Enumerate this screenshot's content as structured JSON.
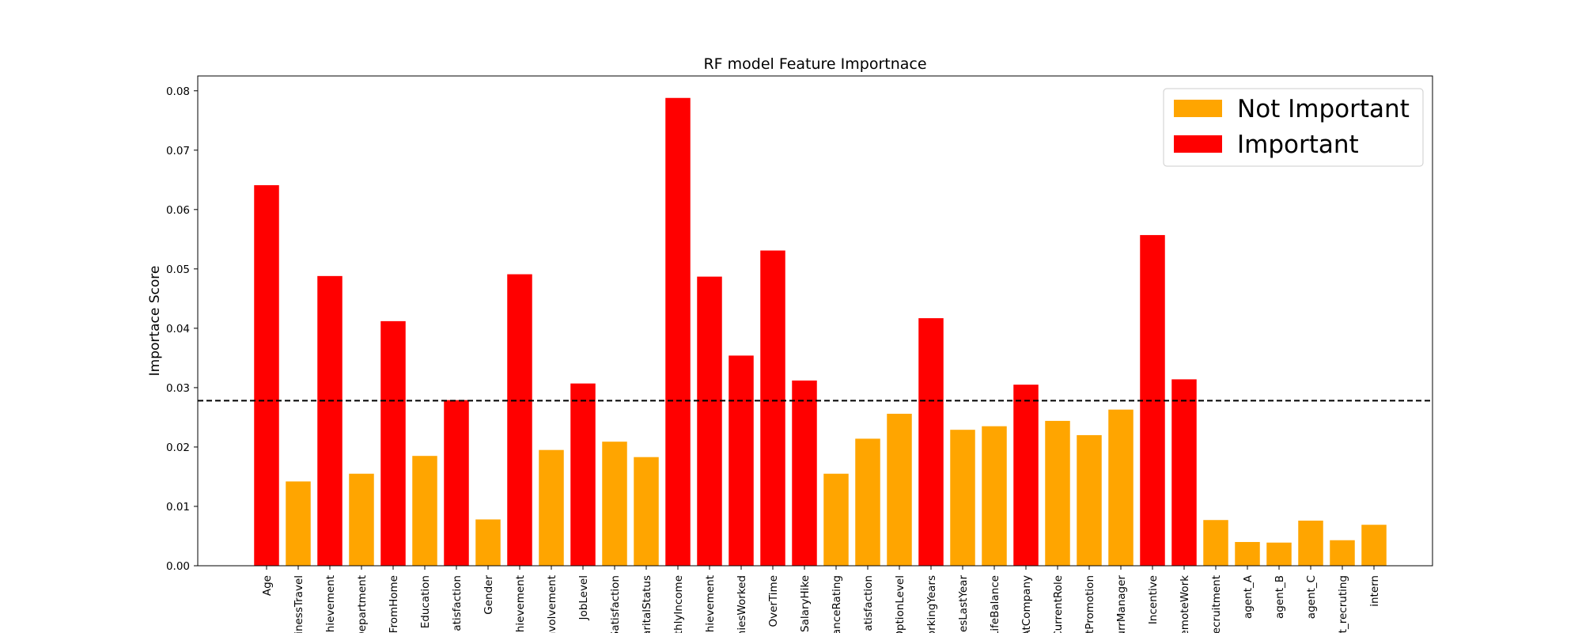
{
  "chart_data": {
    "type": "bar",
    "title": "RF model Feature Importnace",
    "xlabel": "",
    "ylabel": "Importace Score",
    "ylim": [
      0,
      0.0825
    ],
    "yticks": [
      "0.00",
      "0.01",
      "0.02",
      "0.03",
      "0.04",
      "0.05",
      "0.06",
      "0.07",
      "0.08"
    ],
    "threshold": 0.0278,
    "threshold_style": "dashed",
    "grid": false,
    "legend_position": "top-right",
    "colors": {
      "important": "#ff0000",
      "not_important": "#ffa500"
    },
    "legend": [
      {
        "label": "Not Important",
        "color": "#ffa500"
      },
      {
        "label": "Important",
        "color": "#ff0000"
      }
    ],
    "categories": [
      "Age",
      "inessTravel",
      "hievement",
      "Department",
      "FromHome",
      "Education",
      "atisfaction",
      "Gender",
      "hievement",
      "nvolvement",
      "JobLevel",
      "Satisfaction",
      "aritalStatus",
      "thlyIncome",
      "hievement",
      "niesWorked",
      "OverTime",
      "SalaryHike",
      "anceRating",
      "atisfaction",
      "OptionLevel",
      "orkingYears",
      "nesLastYear",
      "LifeBalance",
      "AtCompany",
      "CurrentRole",
      "tPromotion",
      "urrManager",
      "Incentive",
      "emoteWork",
      "ecruitment",
      "agent_A",
      "agent_B",
      "agent_C",
      "t_recruting",
      "intern"
    ],
    "values": [
      0.0641,
      0.0142,
      0.0488,
      0.0155,
      0.0412,
      0.0185,
      0.0279,
      0.0078,
      0.0491,
      0.0195,
      0.0307,
      0.0209,
      0.0183,
      0.0788,
      0.0487,
      0.0354,
      0.0531,
      0.0312,
      0.0155,
      0.0214,
      0.0256,
      0.0417,
      0.0229,
      0.0235,
      0.0305,
      0.0244,
      0.022,
      0.0263,
      0.0557,
      0.0314,
      0.0077,
      0.004,
      0.0039,
      0.0076,
      0.0043,
      0.0069
    ],
    "important": [
      true,
      false,
      true,
      false,
      true,
      false,
      true,
      false,
      true,
      false,
      true,
      false,
      false,
      true,
      true,
      true,
      true,
      true,
      false,
      false,
      false,
      true,
      false,
      false,
      true,
      false,
      false,
      false,
      true,
      true,
      false,
      false,
      false,
      false,
      false,
      false
    ]
  }
}
